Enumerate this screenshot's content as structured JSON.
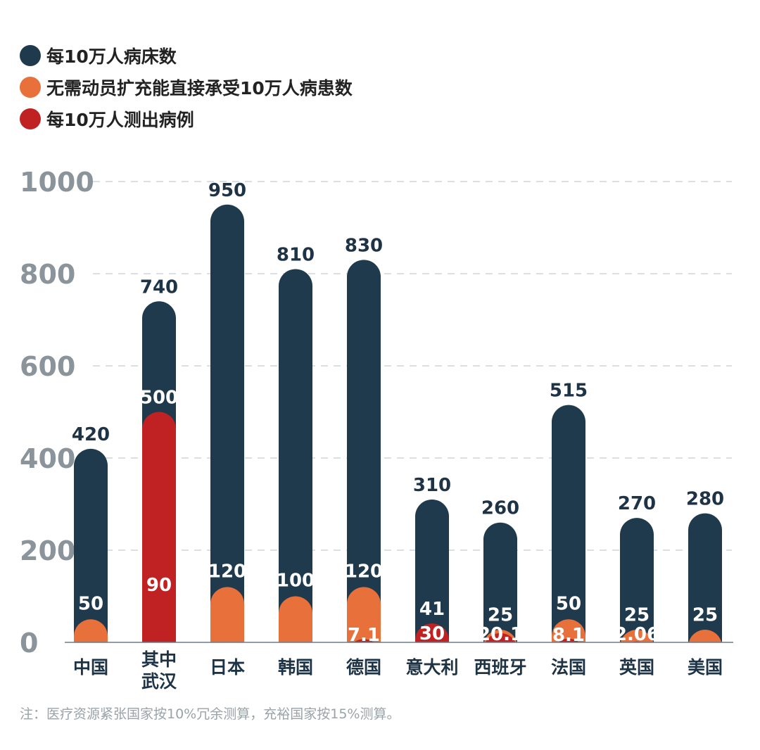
{
  "chart_data": {
    "type": "bar",
    "title": "",
    "xlabel": "",
    "ylabel": "",
    "ylim": [
      0,
      1000
    ],
    "yticks": [
      "0",
      "200",
      "400",
      "600",
      "800",
      "1000"
    ],
    "grid": true,
    "legend_position": "top-left",
    "categories": [
      [
        "中国"
      ],
      [
        "其中",
        "武汉"
      ],
      [
        "日本"
      ],
      [
        "韩国"
      ],
      [
        "德国"
      ],
      [
        "意大利"
      ],
      [
        "西班牙"
      ],
      [
        "法国"
      ],
      [
        "英国"
      ],
      [
        "美国"
      ]
    ],
    "series": [
      {
        "name": "每10万人病床数",
        "color": "#1e3a4c",
        "values": [
          420,
          740,
          950,
          810,
          830,
          310,
          260,
          515,
          270,
          280
        ],
        "labels": [
          "420",
          "740",
          "950",
          "810",
          "830",
          "310",
          "260",
          "515",
          "270",
          "280"
        ]
      },
      {
        "name": "无需动员扩充能直接承受10万人病患数",
        "color": "#e8703a",
        "values": [
          50,
          90,
          120,
          100,
          120,
          30,
          25,
          50,
          25,
          25
        ],
        "labels": [
          "50",
          "90",
          "120",
          "100",
          "120",
          "30",
          "25",
          "50",
          "25",
          "25"
        ]
      },
      {
        "name": "每10万人测出病例",
        "color": "#c02223",
        "values": [
          null,
          500,
          null,
          null,
          7.1,
          41,
          20.1,
          8.1,
          2.06,
          null
        ],
        "labels": [
          null,
          "500",
          null,
          null,
          "7.1",
          "41",
          "20.1",
          "8.1",
          "2.06",
          null
        ]
      }
    ]
  },
  "legend": [
    {
      "label": "每10万人病床数",
      "color": "#1e3a4c"
    },
    {
      "label": "无需动员扩充能直接承受10万人病患数",
      "color": "#e8703a"
    },
    {
      "label": "每10万人测出病例",
      "color": "#c02223"
    }
  ],
  "note": "注：医疗资源紧张国家按10%冗余测算，充裕国家按15%测算。"
}
